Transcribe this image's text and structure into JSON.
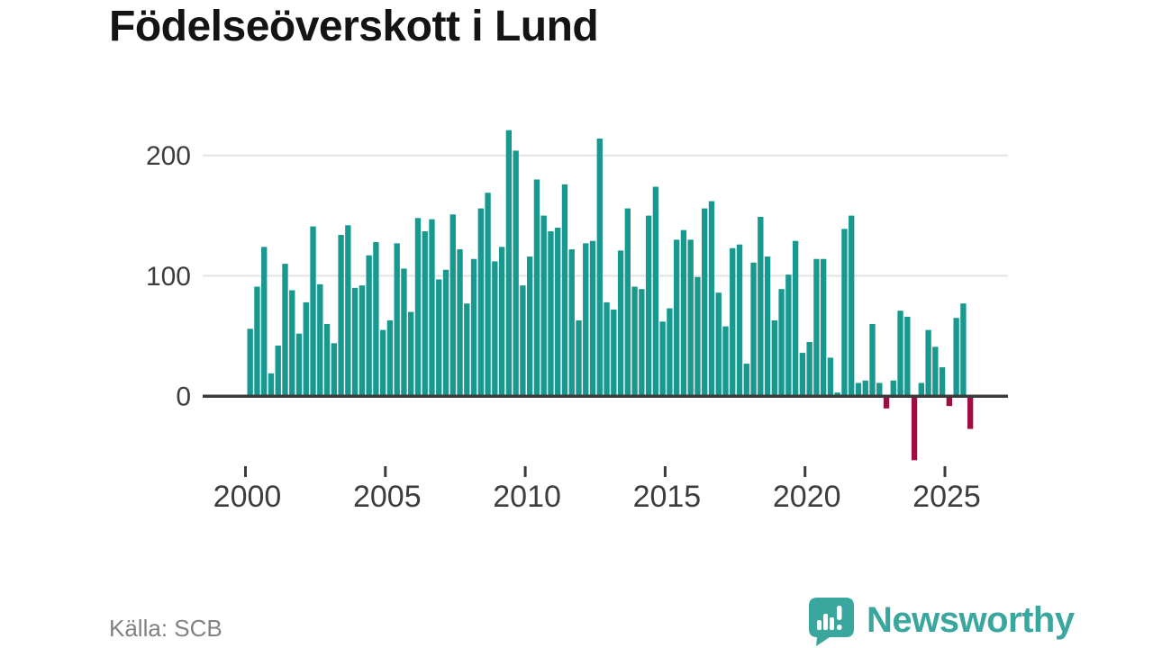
{
  "title": "Födelseöverskott i Lund",
  "source_note": "Källa: SCB",
  "branding": {
    "logo_text": "Newsworthy",
    "logo_icon": "newsworthy-speech-bubble-chart-icon"
  },
  "colors": {
    "bar_positive": "#17998f",
    "bar_negative": "#a00d45",
    "zero_line": "#3b3b3b",
    "gridline": "#e3e3e3",
    "tick_label": "#3d3d3d",
    "title_text": "#141414",
    "source_text": "#828282",
    "logo": "#3aa79e"
  },
  "chart_data": {
    "type": "bar",
    "title": "Födelseöverskott i Lund",
    "frequency": "quarterly",
    "start_period": "2000-Q1",
    "end_period": "2025-Q4",
    "values": [
      56,
      91,
      124,
      19,
      42,
      110,
      88,
      52,
      78,
      141,
      93,
      60,
      44,
      134,
      142,
      90,
      92,
      117,
      128,
      55,
      63,
      127,
      106,
      70,
      148,
      137,
      147,
      97,
      105,
      151,
      122,
      77,
      114,
      156,
      169,
      112,
      124,
      221,
      204,
      92,
      116,
      180,
      150,
      137,
      140,
      176,
      122,
      63,
      127,
      129,
      214,
      78,
      72,
      121,
      156,
      91,
      89,
      150,
      174,
      62,
      73,
      130,
      138,
      130,
      99,
      156,
      162,
      86,
      58,
      123,
      126,
      27,
      111,
      149,
      116,
      63,
      89,
      101,
      129,
      36,
      45,
      114,
      114,
      32,
      3,
      139,
      150,
      11,
      13,
      60,
      11,
      -9,
      13,
      71,
      66,
      -52,
      11,
      55,
      41,
      24,
      -7,
      65,
      77,
      -26
    ],
    "ytick_values": [
      0,
      100,
      200
    ],
    "ytick_labels": [
      "0",
      "100",
      "200"
    ],
    "xtick_years": [
      2000,
      2005,
      2010,
      2015,
      2020,
      2025
    ],
    "xtick_labels": [
      "2000",
      "2005",
      "2010",
      "2015",
      "2020",
      "2025"
    ],
    "ylim": [
      -60,
      230
    ],
    "grid": "horizontal",
    "legend": "none"
  }
}
